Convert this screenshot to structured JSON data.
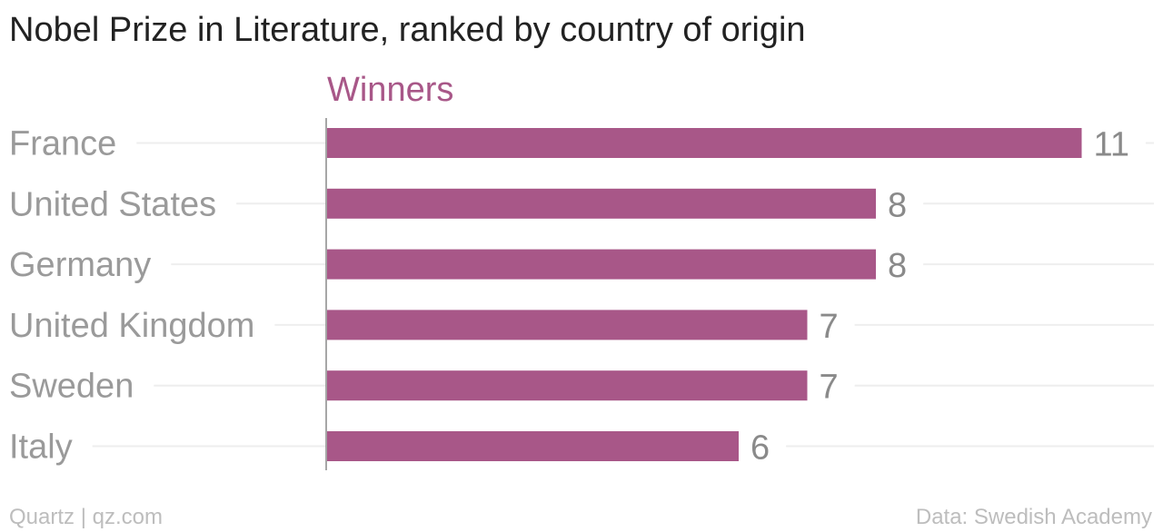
{
  "colors": {
    "bar": "#a85788",
    "series_label": "#a85788",
    "category_label": "#9a9a9a",
    "value_label": "#8a8a8a",
    "grid": "#eeeeee",
    "axis": "#888888"
  },
  "chart_data": {
    "type": "bar",
    "orientation": "horizontal",
    "title": "Nobel Prize in Literature, ranked by country of origin",
    "series": [
      {
        "name": "Winners",
        "values": [
          11,
          8,
          8,
          7,
          7,
          6
        ]
      }
    ],
    "categories": [
      "France",
      "United States",
      "Germany",
      "United Kingdom",
      "Sweden",
      "Italy"
    ],
    "xlim": [
      0,
      11
    ],
    "grid": true,
    "data_labels": true
  },
  "footer": {
    "source_left": "Quartz | qz.com",
    "source_right": "Data: Swedish Academy"
  }
}
